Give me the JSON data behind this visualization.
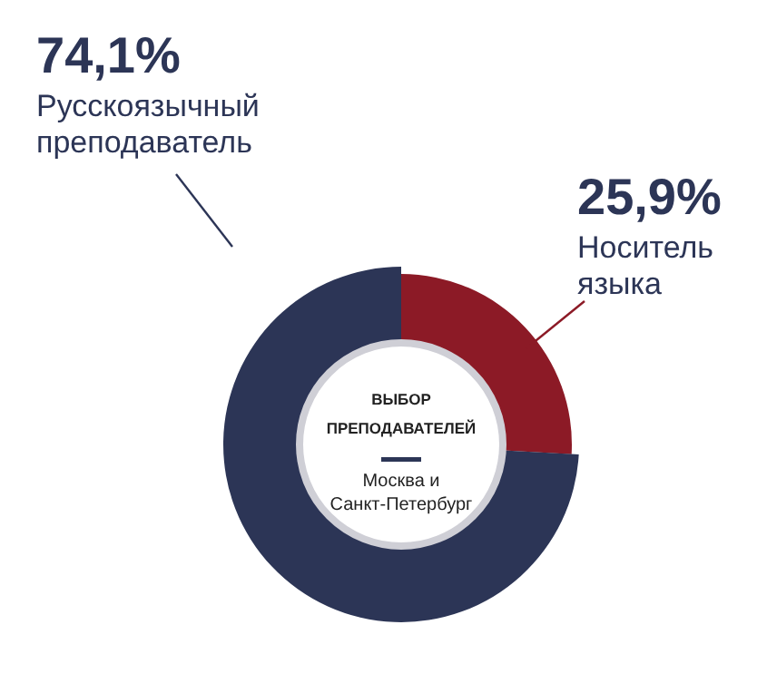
{
  "chart_data": {
    "type": "donut",
    "title": "ВЫБОР ПРЕПОДАВАТЕЛЕЙ",
    "subtitle": "Москва и Санкт-Петербург",
    "categories": [
      "Носитель языка",
      "Русскоязычный преподаватель"
    ],
    "values": [
      25.9,
      74.1
    ],
    "colors": [
      "#8c1a26",
      "#2c3556"
    ],
    "value_labels": [
      "25,9%",
      "74,1%"
    ],
    "legend": false
  }
}
